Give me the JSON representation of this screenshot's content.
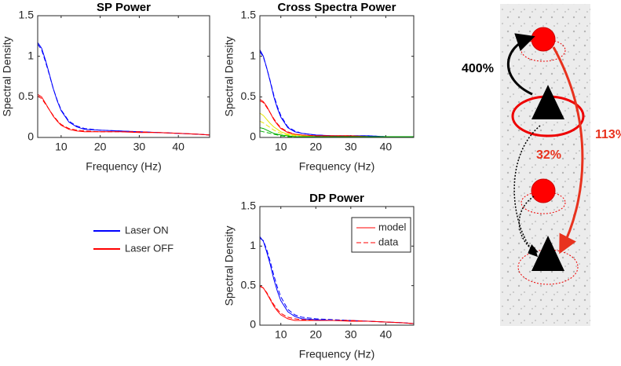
{
  "chart_data": [
    {
      "type": "line",
      "title": "SP Power",
      "xlabel": "Frequency (Hz)",
      "ylabel": "Spectral Density",
      "x": [
        4,
        5,
        6,
        7,
        8,
        9,
        10,
        12,
        14,
        16,
        20,
        25,
        30,
        35,
        40,
        45,
        48
      ],
      "xlim": [
        4,
        48
      ],
      "ylim": [
        0,
        1.5
      ],
      "xticks": [
        10,
        20,
        30,
        40
      ],
      "yticks": [
        0,
        0.5,
        1,
        1.5
      ],
      "series": [
        {
          "color": "#0000ff",
          "dashed": false,
          "values": [
            1.17,
            1.1,
            0.95,
            0.78,
            0.6,
            0.45,
            0.33,
            0.19,
            0.13,
            0.1,
            0.09,
            0.08,
            0.07,
            0.06,
            0.05,
            0.04,
            0.03
          ]
        },
        {
          "color": "#0000ff",
          "dashed": true,
          "values": [
            1.15,
            1.08,
            0.93,
            0.77,
            0.6,
            0.46,
            0.34,
            0.2,
            0.14,
            0.11,
            0.09,
            0.08,
            0.07,
            0.06,
            0.05,
            0.04,
            0.03
          ]
        },
        {
          "color": "#ff0000",
          "dashed": false,
          "values": [
            0.53,
            0.5,
            0.42,
            0.34,
            0.26,
            0.2,
            0.15,
            0.1,
            0.08,
            0.07,
            0.07,
            0.07,
            0.06,
            0.06,
            0.05,
            0.04,
            0.03
          ]
        },
        {
          "color": "#ff0000",
          "dashed": true,
          "values": [
            0.51,
            0.48,
            0.41,
            0.34,
            0.27,
            0.21,
            0.16,
            0.11,
            0.09,
            0.08,
            0.07,
            0.07,
            0.07,
            0.06,
            0.05,
            0.04,
            0.03
          ]
        }
      ],
      "legend": [
        {
          "label": "Laser ON",
          "color": "#0000ff"
        },
        {
          "label": "Laser OFF",
          "color": "#ff0000"
        }
      ]
    },
    {
      "type": "line",
      "title": "Cross Spectra Power",
      "xlabel": "Frequency (Hz)",
      "ylabel": "Spectral Density",
      "x": [
        4,
        5,
        6,
        7,
        8,
        9,
        10,
        12,
        14,
        16,
        20,
        25,
        30,
        35,
        40,
        45,
        48
      ],
      "xlim": [
        4,
        48
      ],
      "ylim": [
        0,
        1.5
      ],
      "xticks": [
        10,
        20,
        30,
        40
      ],
      "yticks": [
        0,
        0.5,
        1,
        1.5
      ],
      "series": [
        {
          "color": "#0000ff",
          "dashed": false,
          "values": [
            1.08,
            1.0,
            0.85,
            0.68,
            0.5,
            0.36,
            0.25,
            0.12,
            0.07,
            0.05,
            0.03,
            0.02,
            0.02,
            0.02,
            0.01,
            0.01,
            0.01
          ]
        },
        {
          "color": "#0000ff",
          "dashed": true,
          "values": [
            1.06,
            0.99,
            0.85,
            0.69,
            0.52,
            0.38,
            0.27,
            0.13,
            0.08,
            0.05,
            0.03,
            0.02,
            0.02,
            0.02,
            0.01,
            0.01,
            0.01
          ]
        },
        {
          "color": "#ff0000",
          "dashed": false,
          "values": [
            0.47,
            0.44,
            0.38,
            0.3,
            0.22,
            0.16,
            0.11,
            0.06,
            0.04,
            0.03,
            0.02,
            0.02,
            0.02,
            0.01,
            0.01,
            0.01,
            0.01
          ]
        },
        {
          "color": "#ff0000",
          "dashed": true,
          "values": [
            0.45,
            0.43,
            0.37,
            0.3,
            0.23,
            0.17,
            0.12,
            0.07,
            0.04,
            0.03,
            0.02,
            0.02,
            0.02,
            0.01,
            0.01,
            0.01,
            0.01
          ]
        },
        {
          "color": "#e6e600",
          "dashed": false,
          "values": [
            0.3,
            0.27,
            0.22,
            0.17,
            0.13,
            0.1,
            0.07,
            0.04,
            0.03,
            0.02,
            0.01,
            0.01,
            0.01,
            0.01,
            0.01,
            0.01,
            0.01
          ]
        },
        {
          "color": "#e6e600",
          "dashed": true,
          "values": [
            0.2,
            0.18,
            0.15,
            0.12,
            0.09,
            0.07,
            0.05,
            0.03,
            0.02,
            0.01,
            0.01,
            0.01,
            0.01,
            0.01,
            0.01,
            0.01,
            0.01
          ]
        },
        {
          "color": "#00b000",
          "dashed": false,
          "values": [
            0.12,
            0.11,
            0.09,
            0.07,
            0.05,
            0.04,
            0.03,
            0.02,
            0.01,
            0.01,
            0.01,
            0.01,
            0.01,
            0.01,
            0.01,
            0.01,
            0.01
          ]
        },
        {
          "color": "#00b000",
          "dashed": true,
          "values": [
            0.08,
            0.07,
            0.06,
            0.05,
            0.04,
            0.03,
            0.02,
            0.01,
            0.01,
            0.01,
            0.01,
            0.01,
            0.01,
            0.01,
            0.01,
            0.01,
            0.01
          ]
        }
      ]
    },
    {
      "type": "line",
      "title": "DP Power",
      "xlabel": "Frequency (Hz)",
      "ylabel": "Spectral Density",
      "x": [
        4,
        5,
        6,
        7,
        8,
        9,
        10,
        12,
        14,
        16,
        20,
        25,
        30,
        35,
        40,
        45,
        48
      ],
      "xlim": [
        4,
        48
      ],
      "ylim": [
        0,
        1.5
      ],
      "xticks": [
        10,
        20,
        30,
        40
      ],
      "yticks": [
        0,
        0.5,
        1,
        1.5
      ],
      "series": [
        {
          "color": "#0000ff",
          "dashed": false,
          "values": [
            1.12,
            1.06,
            0.92,
            0.76,
            0.58,
            0.43,
            0.31,
            0.17,
            0.11,
            0.08,
            0.07,
            0.06,
            0.06,
            0.05,
            0.04,
            0.03,
            0.02
          ]
        },
        {
          "color": "#0000ff",
          "dashed": true,
          "values": [
            1.1,
            1.07,
            0.95,
            0.8,
            0.63,
            0.48,
            0.36,
            0.2,
            0.13,
            0.1,
            0.08,
            0.07,
            0.06,
            0.05,
            0.04,
            0.03,
            0.02
          ]
        },
        {
          "color": "#ff0000",
          "dashed": false,
          "values": [
            0.5,
            0.47,
            0.4,
            0.32,
            0.24,
            0.18,
            0.13,
            0.08,
            0.06,
            0.06,
            0.06,
            0.06,
            0.05,
            0.05,
            0.04,
            0.03,
            0.02
          ]
        },
        {
          "color": "#ff0000",
          "dashed": true,
          "values": [
            0.49,
            0.47,
            0.41,
            0.33,
            0.26,
            0.2,
            0.15,
            0.1,
            0.08,
            0.07,
            0.06,
            0.06,
            0.06,
            0.05,
            0.04,
            0.03,
            0.02
          ]
        }
      ],
      "legend": [
        {
          "label": "model",
          "dashed": false
        },
        {
          "label": "data",
          "dashed": true
        }
      ]
    }
  ],
  "diagram": {
    "labels": [
      "400%",
      "113%",
      "32%"
    ]
  }
}
